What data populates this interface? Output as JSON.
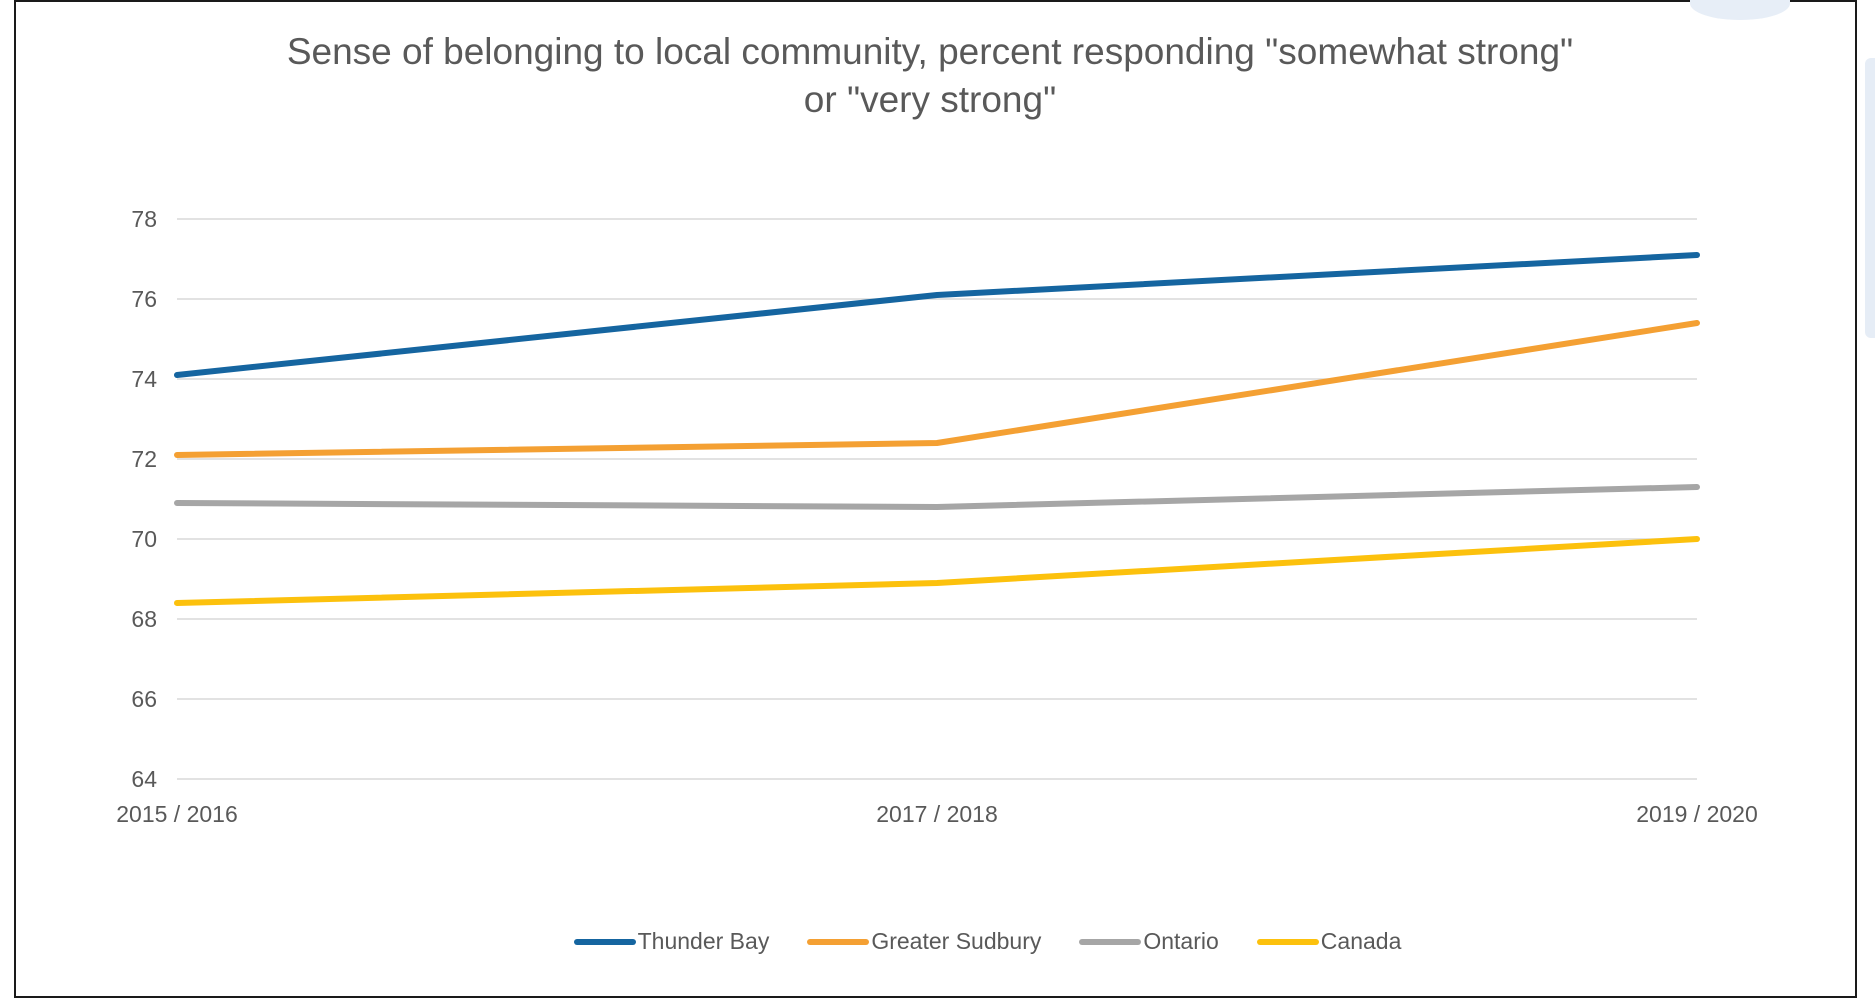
{
  "colors": {
    "frame": "#1a1a1a",
    "grid": "#d9d9d9",
    "text": "#595959"
  },
  "chart_data": {
    "type": "line",
    "title": "Sense of belonging to local community, percent responding \"somewhat strong\"\nor \"very strong\"",
    "xlabel": "",
    "ylabel": "",
    "categories": [
      "2015 / 2016",
      "2017 / 2018",
      "2019 / 2020"
    ],
    "ylim": [
      64,
      78
    ],
    "yticks": [
      78,
      76,
      74,
      72,
      70,
      68,
      66,
      64
    ],
    "grid": true,
    "legend_position": "bottom",
    "series": [
      {
        "name": "Thunder Bay",
        "color": "#1565a0",
        "values": [
          74.1,
          76.1,
          77.1
        ]
      },
      {
        "name": "Greater Sudbury",
        "color": "#f4a033",
        "values": [
          72.1,
          72.4,
          75.4
        ]
      },
      {
        "name": "Ontario",
        "color": "#a6a6a6",
        "values": [
          70.9,
          70.8,
          71.3
        ]
      },
      {
        "name": "Canada",
        "color": "#fcc10d",
        "values": [
          68.4,
          68.9,
          70.0
        ]
      }
    ]
  }
}
